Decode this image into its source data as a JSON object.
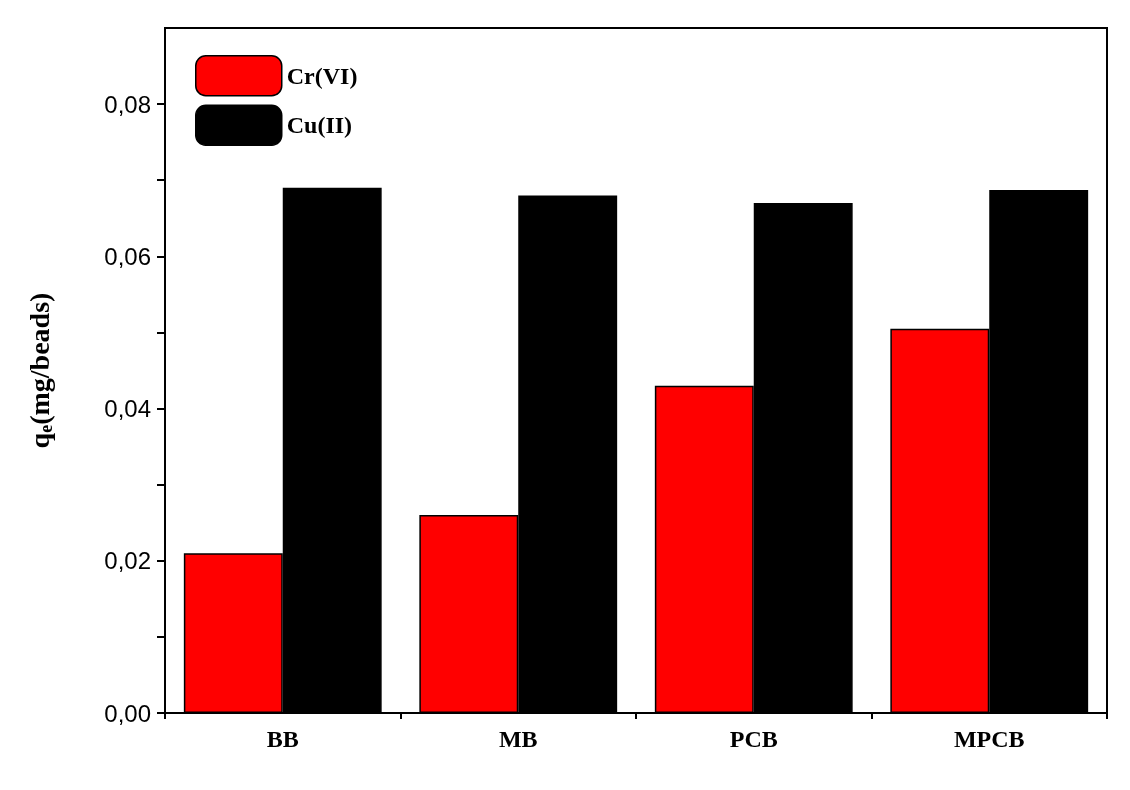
{
  "chart_data": {
    "type": "bar",
    "ylabel": "q$_{e}$(mg/beads)",
    "categories": [
      "BB",
      "MB",
      "PCB",
      "MPCB"
    ],
    "series": [
      {
        "name": "Cr(VI)",
        "color": "#ff0000",
        "values": [
          0.021,
          0.026,
          0.043,
          0.0505
        ]
      },
      {
        "name": "Cu(II)",
        "color": "#000000",
        "values": [
          0.069,
          0.068,
          0.067,
          0.0687
        ]
      }
    ],
    "ylim": [
      0,
      0.09
    ],
    "yticks": [
      {
        "value": 0,
        "label": "0,00"
      },
      {
        "value": 0.01,
        "label": null
      },
      {
        "value": 0.02,
        "label": "0,02"
      },
      {
        "value": 0.03,
        "label": null
      },
      {
        "value": 0.04,
        "label": "0,04"
      },
      {
        "value": 0.05,
        "label": null
      },
      {
        "value": 0.06,
        "label": "0,06"
      },
      {
        "value": 0.07,
        "label": null
      },
      {
        "value": 0.08,
        "label": "0,08"
      }
    ],
    "grid": false,
    "legend": "top left"
  }
}
